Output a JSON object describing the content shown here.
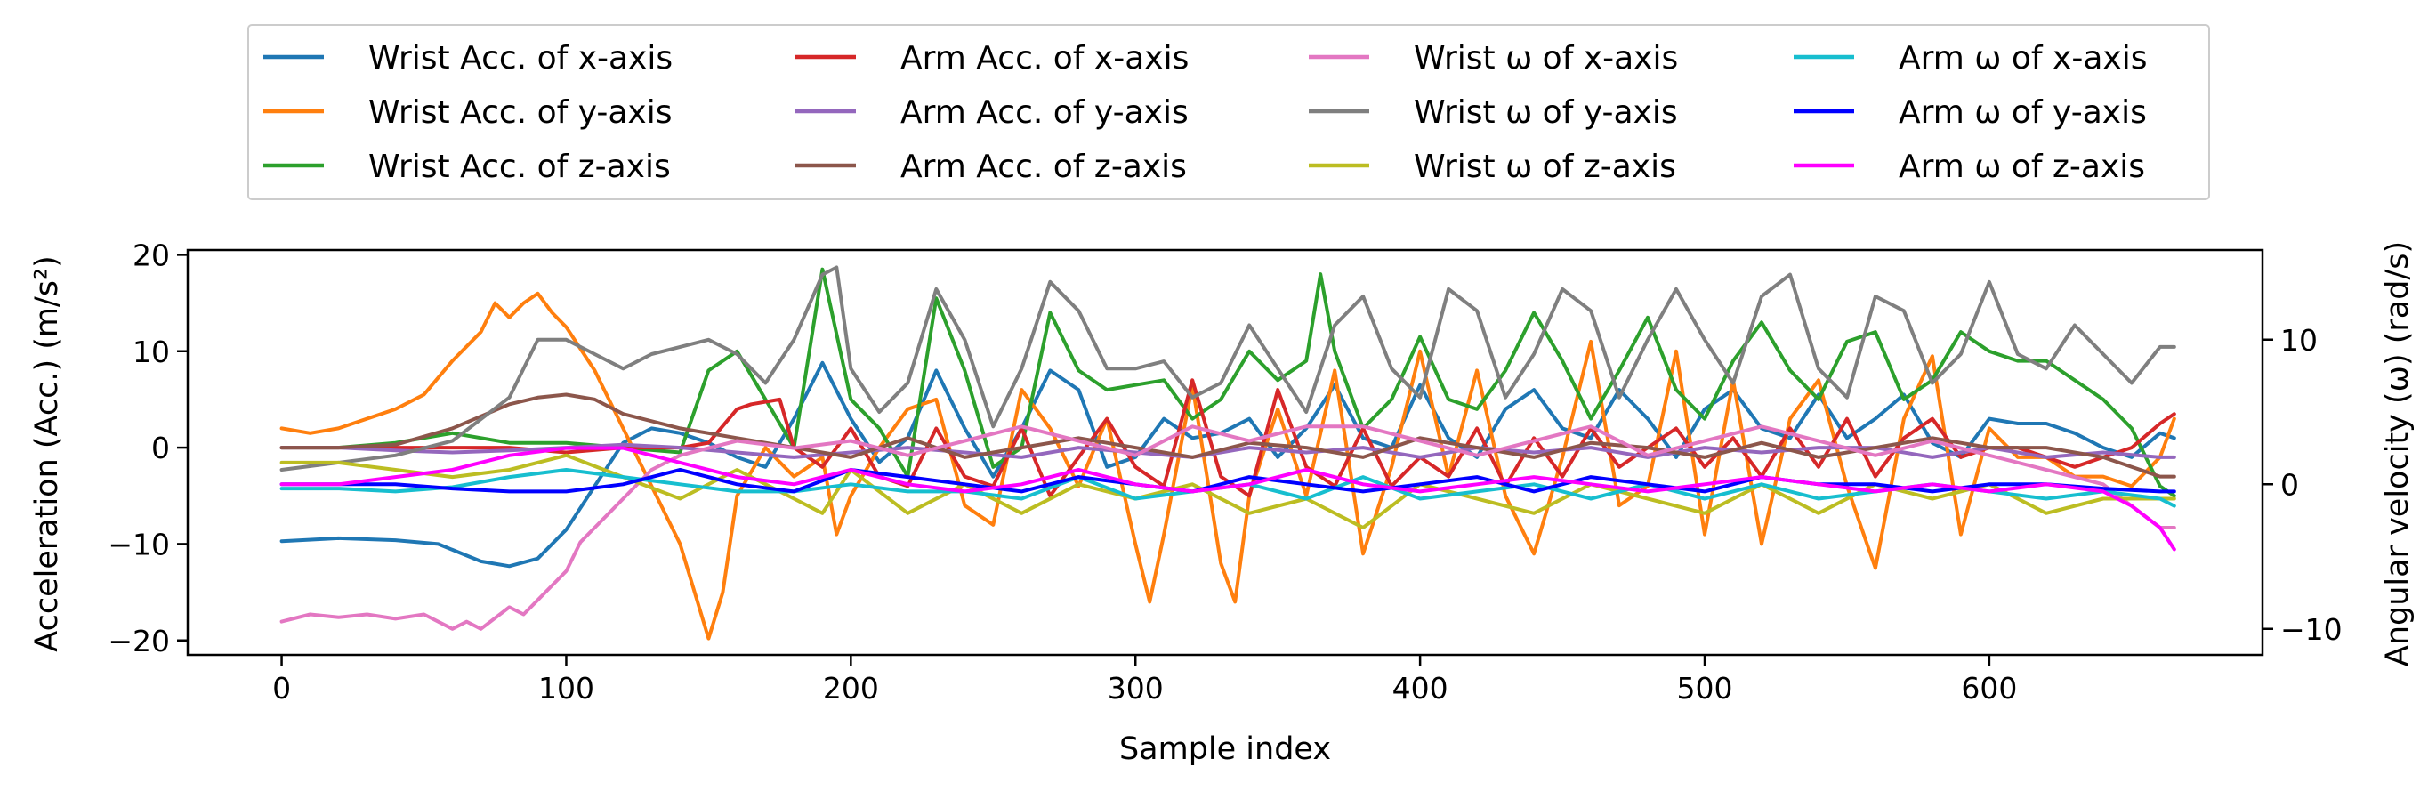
{
  "chart_data": {
    "type": "line",
    "title": "",
    "xlabel": "Sample index",
    "ylabel": "Acceleration (Acc.) (m/s²)",
    "y2label": "Angular velocity (ω) (rad/s)",
    "xlim": [
      -33,
      696
    ],
    "ylim": [
      -21.5,
      20.5
    ],
    "y2lim": [
      -11.8,
      16.2
    ],
    "xticks": [
      0,
      100,
      200,
      300,
      400,
      500,
      600
    ],
    "yticks": [
      -20,
      -10,
      0,
      10,
      20
    ],
    "y2ticks": [
      -10,
      0,
      10
    ],
    "tick_labels": {
      "x": [
        "0",
        "100",
        "200",
        "300",
        "400",
        "500",
        "600"
      ],
      "y": [
        "−20",
        "−10",
        "0",
        "10",
        "20"
      ],
      "y2": [
        "−10",
        "0",
        "10"
      ]
    },
    "legend_position": "top (outside plot), 4 columns",
    "grid": false,
    "series": [
      {
        "name": "Wrist Acc. of x-axis",
        "color": "#1f77b4",
        "axis": "left",
        "x": [
          0,
          20,
          40,
          55,
          70,
          80,
          90,
          100,
          110,
          120,
          130,
          140,
          150,
          160,
          170,
          180,
          190,
          200,
          210,
          220,
          230,
          240,
          250,
          260,
          270,
          280,
          290,
          300,
          310,
          320,
          330,
          340,
          350,
          360,
          370,
          380,
          390,
          400,
          410,
          420,
          430,
          440,
          450,
          460,
          470,
          480,
          490,
          500,
          510,
          520,
          530,
          540,
          550,
          560,
          570,
          580,
          590,
          600,
          610,
          620,
          630,
          640,
          650,
          660,
          665
        ],
        "y": [
          -9.7,
          -9.4,
          -9.6,
          -10,
          -11.8,
          -12.3,
          -11.5,
          -8.5,
          -4,
          0.5,
          2,
          1.5,
          0.5,
          -1,
          -2,
          3,
          8.8,
          3,
          -1.5,
          1,
          8,
          2,
          -3,
          2,
          8,
          6,
          -2,
          -1,
          3,
          1,
          1.5,
          3,
          -1,
          2,
          6.5,
          1,
          0,
          6.5,
          1,
          -1,
          4,
          6,
          2,
          1,
          6,
          3,
          -1,
          4,
          6,
          2,
          1,
          5.5,
          1,
          3,
          5.5,
          0.5,
          -1,
          3,
          2.5,
          2.5,
          1.5,
          0,
          -1,
          1.5,
          1
        ]
      },
      {
        "name": "Wrist Acc. of y-axis",
        "color": "#ff7f0e",
        "axis": "left",
        "x": [
          0,
          10,
          20,
          40,
          50,
          60,
          70,
          75,
          80,
          85,
          90,
          95,
          100,
          110,
          120,
          130,
          140,
          150,
          155,
          160,
          170,
          180,
          190,
          195,
          200,
          210,
          220,
          230,
          240,
          250,
          260,
          270,
          280,
          290,
          300,
          305,
          310,
          320,
          330,
          335,
          340,
          350,
          360,
          370,
          380,
          390,
          400,
          410,
          420,
          430,
          440,
          450,
          460,
          470,
          480,
          490,
          500,
          510,
          520,
          530,
          540,
          550,
          560,
          570,
          580,
          590,
          600,
          610,
          620,
          630,
          640,
          650,
          660,
          665
        ],
        "y": [
          2,
          1.5,
          2,
          4,
          5.5,
          9,
          12,
          15,
          13.5,
          15,
          16,
          14,
          12.5,
          8,
          2,
          -4,
          -10,
          -19.8,
          -15,
          -5,
          0,
          -3,
          -1,
          -9,
          -5,
          0,
          4,
          5,
          -6,
          -8,
          6,
          2,
          -4,
          3,
          -10,
          -16,
          -9,
          6.5,
          -12,
          -16,
          -5,
          4,
          -5,
          8,
          -11,
          -2,
          10,
          -3,
          8,
          -5,
          -11,
          -1,
          11,
          -6,
          -4,
          10,
          -9,
          7,
          -10,
          3,
          7,
          -4,
          -12.5,
          3,
          9.5,
          -9,
          2,
          -1,
          -1,
          -3,
          -3,
          -4,
          -1,
          3
        ]
      },
      {
        "name": "Wrist Acc. of z-axis",
        "color": "#2ca02c",
        "axis": "left",
        "x": [
          0,
          20,
          40,
          60,
          80,
          100,
          120,
          140,
          150,
          160,
          170,
          180,
          190,
          200,
          210,
          220,
          230,
          240,
          250,
          260,
          270,
          280,
          290,
          300,
          310,
          320,
          330,
          340,
          350,
          360,
          365,
          370,
          380,
          390,
          400,
          410,
          420,
          430,
          440,
          450,
          460,
          470,
          480,
          490,
          500,
          510,
          520,
          530,
          540,
          550,
          560,
          570,
          580,
          590,
          600,
          610,
          620,
          630,
          640,
          650,
          660,
          665
        ],
        "y": [
          0,
          0,
          0.5,
          1.5,
          0.5,
          0.5,
          0,
          -0.5,
          8,
          10,
          5,
          0,
          18.5,
          5,
          2,
          -3,
          15.5,
          8,
          -2,
          0,
          14,
          8,
          6,
          6.5,
          7,
          3,
          5,
          10,
          7,
          9,
          18,
          10,
          2,
          5,
          11.5,
          5,
          4,
          8,
          14,
          9,
          3,
          8,
          13.5,
          6,
          3,
          9,
          13,
          8,
          5,
          11,
          12,
          5,
          7,
          12,
          10,
          9,
          9,
          7,
          5,
          2,
          -4,
          -5
        ]
      },
      {
        "name": "Arm Acc. of x-axis",
        "color": "#d62728",
        "axis": "left",
        "x": [
          0,
          20,
          40,
          60,
          80,
          100,
          120,
          140,
          150,
          160,
          165,
          175,
          180,
          190,
          200,
          210,
          220,
          230,
          240,
          250,
          260,
          270,
          280,
          290,
          300,
          310,
          320,
          330,
          340,
          350,
          360,
          370,
          380,
          390,
          400,
          410,
          420,
          430,
          440,
          450,
          460,
          470,
          480,
          490,
          500,
          510,
          520,
          530,
          540,
          550,
          560,
          570,
          580,
          590,
          600,
          610,
          620,
          630,
          640,
          650,
          660,
          665
        ],
        "y": [
          0,
          0,
          0,
          0,
          0,
          -0.5,
          0,
          0,
          0.5,
          4,
          4.5,
          5,
          0,
          -2,
          2,
          -3,
          -4,
          2,
          -3,
          -4,
          2,
          -5,
          -1,
          3,
          -2,
          -4,
          7,
          -3,
          -5,
          6,
          -2,
          -4,
          2,
          -4,
          -1,
          -3,
          2,
          -4,
          1,
          -3,
          2,
          -2,
          0,
          2,
          -2,
          1,
          -3,
          2,
          -2,
          3,
          -3,
          1,
          3,
          -1,
          0,
          0,
          -1,
          -2,
          -1,
          0,
          2.5,
          3.5
        ]
      },
      {
        "name": "Arm Acc. of y-axis",
        "color": "#9467bd",
        "axis": "left",
        "x": [
          0,
          20,
          40,
          60,
          80,
          100,
          120,
          140,
          160,
          180,
          200,
          220,
          240,
          260,
          280,
          300,
          320,
          340,
          360,
          380,
          400,
          420,
          440,
          460,
          480,
          500,
          520,
          540,
          560,
          580,
          600,
          620,
          640,
          660,
          665
        ],
        "y": [
          0,
          0,
          -0.3,
          -0.5,
          -0.3,
          0,
          0.3,
          0,
          -0.5,
          -1,
          -0.5,
          0,
          -0.5,
          -1,
          0,
          -0.5,
          -1,
          0,
          -0.5,
          0,
          -1,
          0,
          -0.5,
          0,
          -1,
          0,
          -0.5,
          0,
          0,
          -1,
          0,
          -1,
          -0.5,
          -1,
          -1
        ]
      },
      {
        "name": "Arm Acc. of z-axis",
        "color": "#8c564b",
        "axis": "left",
        "x": [
          0,
          20,
          40,
          60,
          80,
          90,
          100,
          110,
          120,
          140,
          160,
          180,
          200,
          220,
          240,
          260,
          280,
          300,
          320,
          340,
          360,
          380,
          400,
          420,
          440,
          460,
          480,
          500,
          520,
          540,
          560,
          580,
          600,
          620,
          640,
          660,
          665
        ],
        "y": [
          0,
          0,
          0.3,
          2,
          4.5,
          5.2,
          5.5,
          5,
          3.5,
          2,
          1,
          0,
          -1,
          1,
          -1,
          0,
          1,
          0,
          -1,
          0.5,
          0,
          -1,
          1,
          0,
          -1,
          0.5,
          0,
          -1,
          0.5,
          -1,
          0,
          1,
          0,
          0,
          -1,
          -3,
          -3
        ]
      },
      {
        "name": "Wrist ω of x-axis",
        "color": "#e377c2",
        "axis": "right",
        "x": [
          0,
          10,
          20,
          30,
          40,
          50,
          60,
          65,
          70,
          80,
          85,
          90,
          95,
          100,
          105,
          110,
          115,
          120,
          130,
          140,
          150,
          160,
          180,
          200,
          220,
          240,
          260,
          280,
          300,
          320,
          340,
          360,
          380,
          400,
          420,
          440,
          460,
          480,
          500,
          520,
          540,
          560,
          580,
          600,
          620,
          640,
          660,
          665
        ],
        "y": [
          -9.5,
          -9,
          -9.2,
          -9,
          -9.3,
          -9,
          -10,
          -9.5,
          -10,
          -8.5,
          -9,
          -8,
          -7,
          -6,
          -4,
          -3,
          -2,
          -1,
          1,
          2,
          2.5,
          3,
          2.5,
          3,
          2,
          3,
          4,
          3,
          2,
          4,
          3,
          4,
          4,
          3,
          2,
          3,
          4,
          2,
          3,
          4,
          3,
          2,
          3,
          2,
          1,
          0,
          -3,
          -3
        ]
      },
      {
        "name": "Wrist ω of y-axis",
        "color": "#7f7f7f",
        "axis": "right",
        "x": [
          0,
          20,
          40,
          60,
          80,
          90,
          100,
          110,
          120,
          130,
          140,
          150,
          160,
          170,
          180,
          190,
          195,
          200,
          210,
          220,
          230,
          240,
          250,
          260,
          270,
          280,
          290,
          300,
          310,
          320,
          330,
          340,
          350,
          360,
          370,
          380,
          390,
          400,
          410,
          420,
          430,
          440,
          450,
          460,
          470,
          480,
          490,
          500,
          510,
          520,
          530,
          540,
          550,
          560,
          570,
          580,
          590,
          600,
          610,
          620,
          630,
          640,
          650,
          660,
          665
        ],
        "y": [
          1,
          1.5,
          2,
          3,
          6,
          10,
          10,
          9,
          8,
          9,
          9.5,
          10,
          9,
          7,
          10,
          14.5,
          15,
          8,
          5,
          7,
          13.5,
          10,
          4,
          8,
          14,
          12,
          8,
          8,
          8.5,
          6,
          7,
          11,
          8,
          5,
          11,
          13,
          8,
          6,
          13.5,
          12,
          6,
          9,
          13.5,
          12,
          6,
          10,
          13.5,
          10,
          7,
          13,
          14.5,
          8,
          6,
          13,
          12,
          7,
          9,
          14,
          9,
          8,
          11,
          9,
          7,
          9.5,
          9.5
        ]
      },
      {
        "name": "Wrist ω of z-axis",
        "color": "#bcbd22",
        "axis": "right",
        "x": [
          0,
          20,
          40,
          60,
          80,
          100,
          120,
          140,
          160,
          180,
          190,
          200,
          220,
          240,
          260,
          280,
          300,
          320,
          340,
          360,
          380,
          400,
          420,
          440,
          460,
          480,
          500,
          520,
          540,
          560,
          580,
          600,
          620,
          640,
          660,
          665
        ],
        "y": [
          1.5,
          1.5,
          1,
          0.5,
          1,
          2,
          0.5,
          -1,
          1,
          -1,
          -2,
          1,
          -2,
          0,
          -2,
          0,
          -1,
          0,
          -2,
          -1,
          -3,
          0,
          -1,
          -2,
          0,
          -1,
          -2,
          0,
          -2,
          0,
          -1,
          0,
          -2,
          -1,
          -1,
          -1
        ]
      },
      {
        "name": "Arm ω of x-axis",
        "color": "#17becf",
        "axis": "right",
        "x": [
          0,
          20,
          40,
          60,
          80,
          100,
          120,
          140,
          160,
          180,
          200,
          220,
          240,
          260,
          280,
          300,
          320,
          340,
          360,
          380,
          400,
          420,
          440,
          460,
          480,
          500,
          520,
          540,
          560,
          580,
          600,
          620,
          640,
          660,
          665
        ],
        "y": [
          -0.3,
          -0.3,
          -0.5,
          -0.2,
          0.5,
          1,
          0.5,
          0,
          -0.5,
          -0.5,
          0,
          -0.5,
          -0.5,
          -1,
          0.5,
          -1,
          -0.5,
          0,
          -1,
          0.5,
          -1,
          -0.5,
          0,
          -1,
          0,
          -1,
          0,
          -1,
          -0.5,
          0,
          -0.5,
          -1,
          -0.5,
          -1,
          -1.5
        ]
      },
      {
        "name": "Arm ω of y-axis",
        "color": "#0000ff",
        "axis": "right",
        "x": [
          0,
          20,
          40,
          60,
          80,
          100,
          120,
          140,
          160,
          180,
          200,
          220,
          240,
          260,
          280,
          300,
          320,
          340,
          360,
          380,
          400,
          420,
          440,
          460,
          480,
          500,
          520,
          540,
          560,
          580,
          600,
          620,
          640,
          660,
          665
        ],
        "y": [
          0,
          0,
          0,
          -0.3,
          -0.5,
          -0.5,
          0,
          1,
          0,
          -0.5,
          1,
          0.5,
          0,
          -0.5,
          0.5,
          0,
          -0.5,
          0.5,
          0,
          -0.5,
          0,
          0.5,
          -0.5,
          0.5,
          0,
          -0.5,
          0.5,
          0,
          0,
          -0.5,
          0,
          0,
          -0.3,
          -0.5,
          -0.5
        ]
      },
      {
        "name": "Arm ω of z-axis",
        "color": "#ff00ff",
        "axis": "right",
        "x": [
          0,
          20,
          40,
          60,
          80,
          100,
          120,
          140,
          160,
          180,
          200,
          220,
          240,
          260,
          280,
          300,
          320,
          340,
          360,
          380,
          400,
          420,
          440,
          460,
          480,
          500,
          520,
          540,
          560,
          580,
          600,
          620,
          640,
          650,
          660,
          665
        ],
        "y": [
          0,
          0,
          0.5,
          1,
          2,
          2.5,
          2.5,
          1.5,
          0.5,
          0,
          1,
          0,
          -0.5,
          0,
          1,
          0,
          -0.5,
          0,
          1,
          0,
          -0.5,
          0,
          0.5,
          0,
          -0.5,
          0,
          0.5,
          0,
          -0.5,
          0,
          -0.5,
          0,
          -0.5,
          -1.5,
          -3,
          -4.5
        ]
      }
    ]
  }
}
